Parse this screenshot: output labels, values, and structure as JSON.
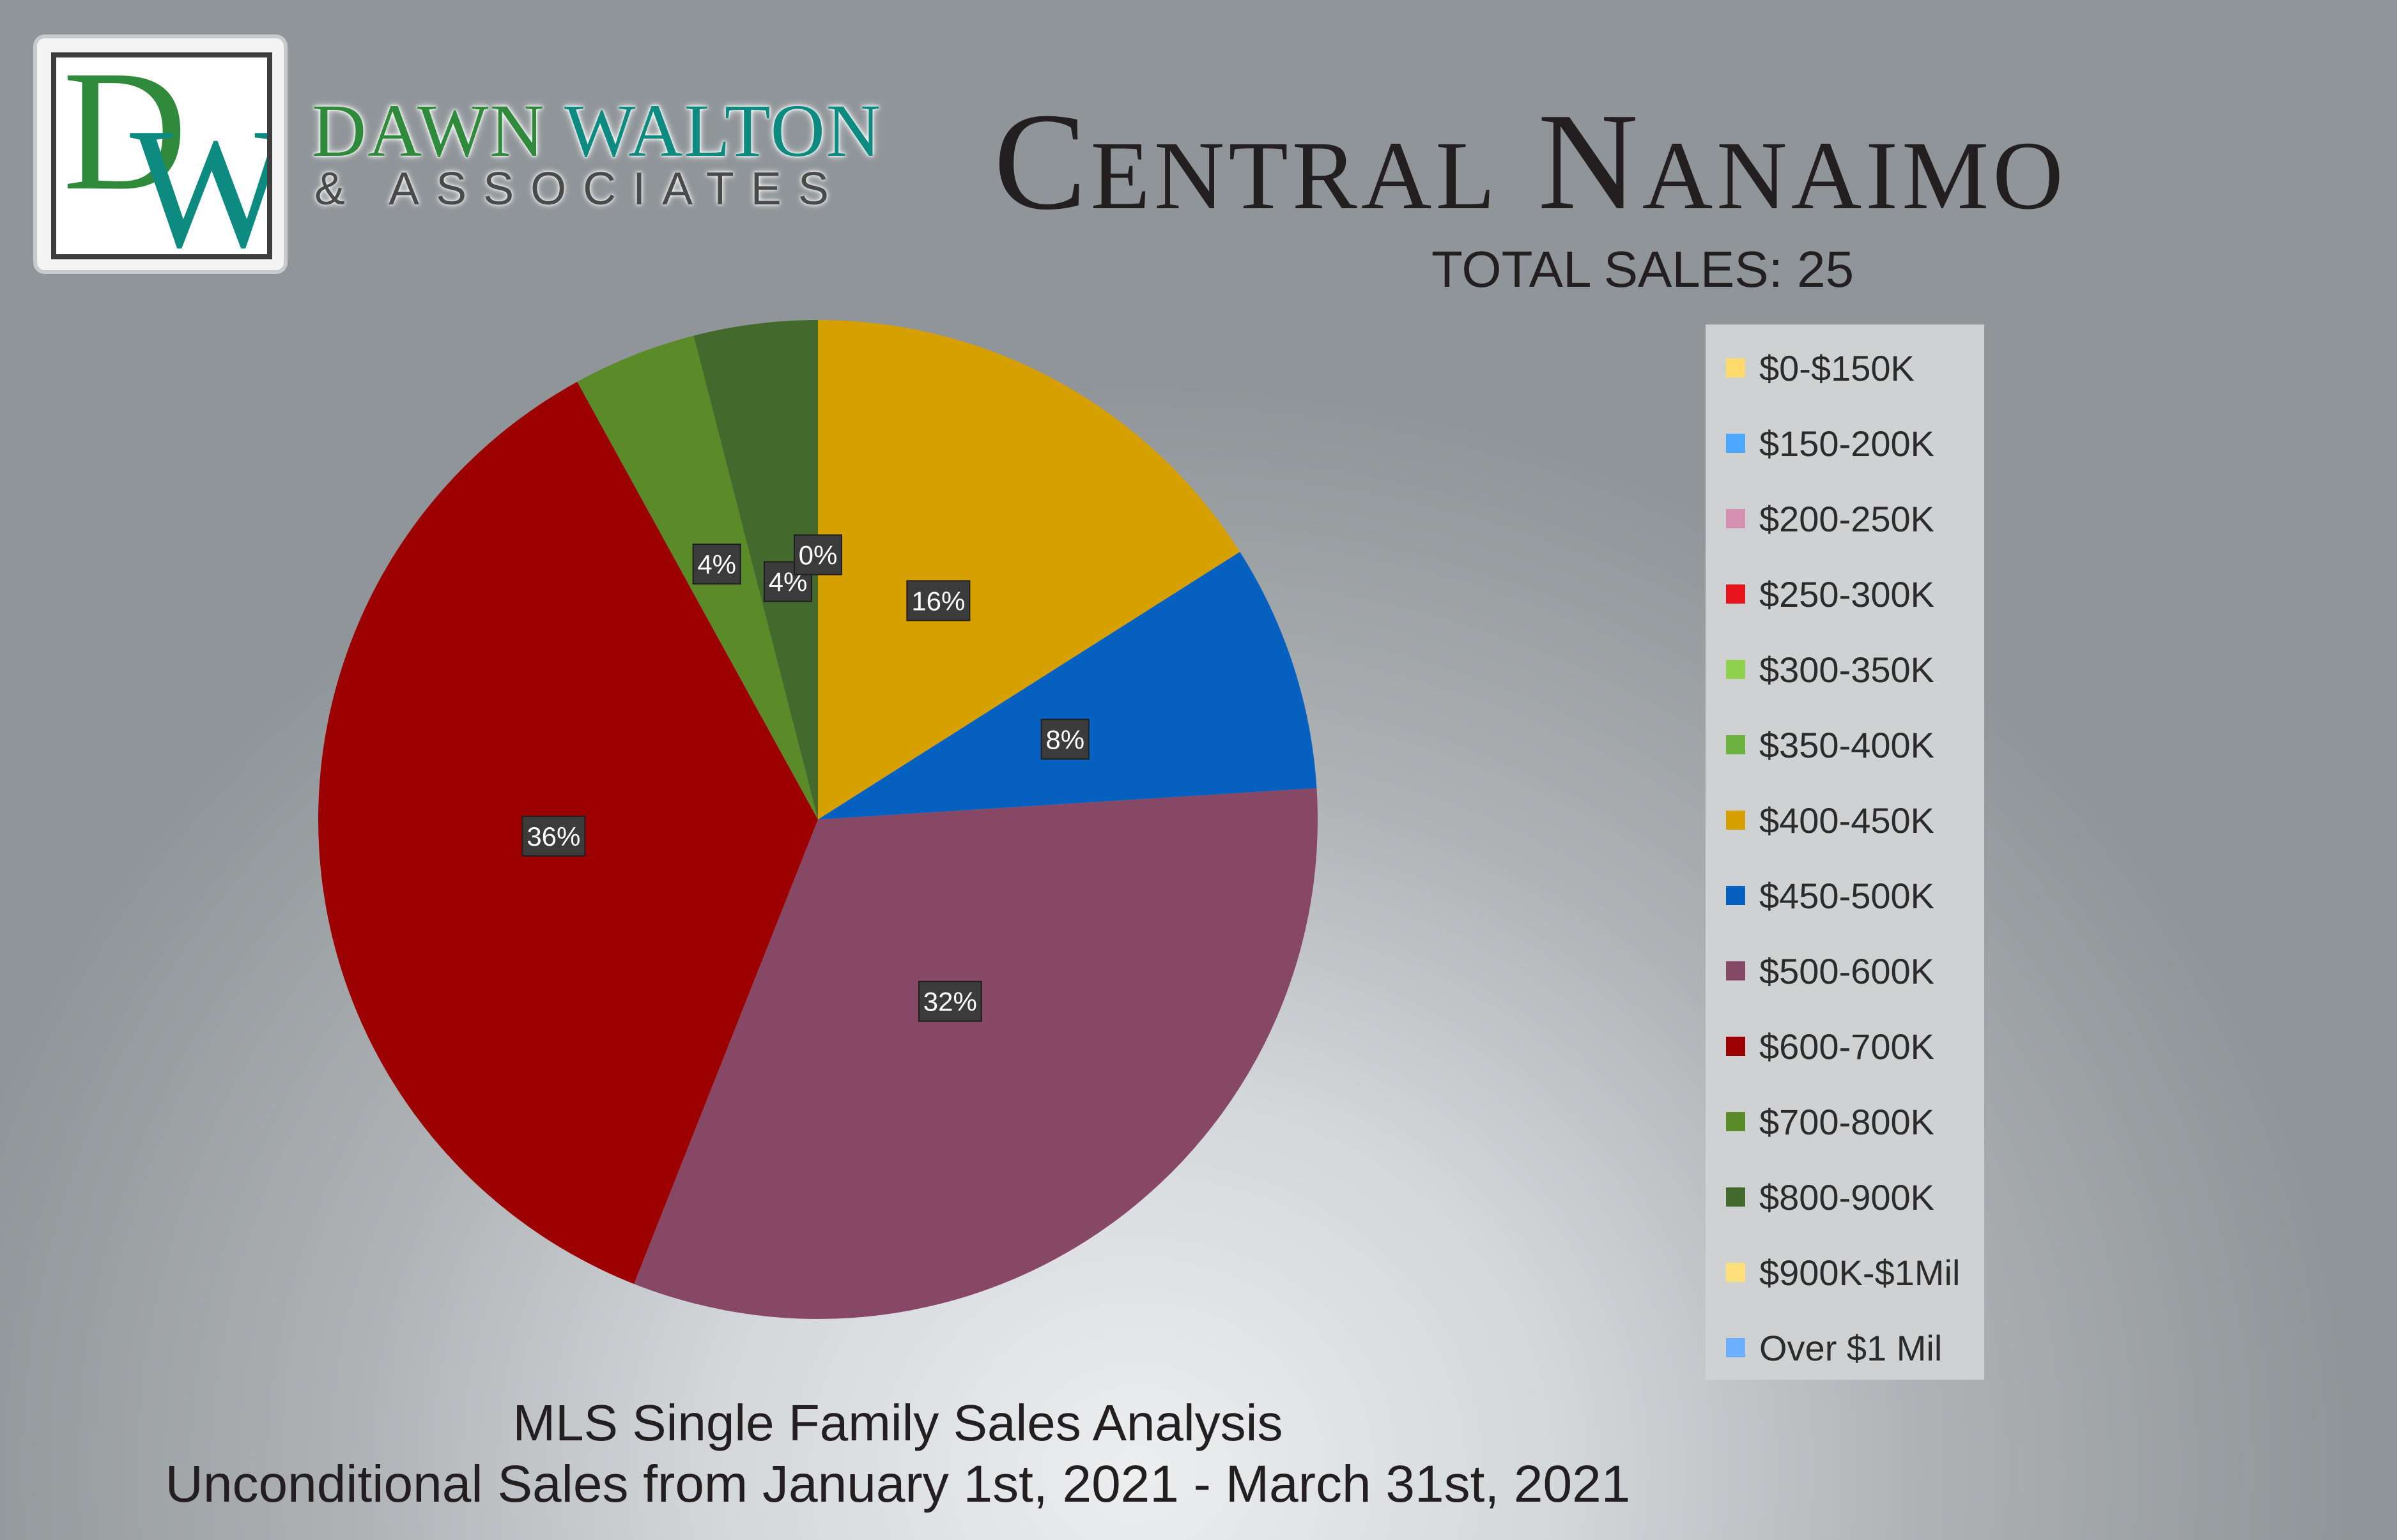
{
  "logo": {
    "monogram_d": "D",
    "monogram_w": "W",
    "name_part1": "DAWN",
    "name_part2": "WALTON",
    "subtitle": "& ASSOCIATES"
  },
  "header": {
    "title": "Central Nanaimo",
    "total_sales": "TOTAL SALES: 25"
  },
  "footer": {
    "line1": "MLS Single Family Sales Analysis",
    "line2": "Unconditional Sales from January 1st, 2021 - March 31st, 2021"
  },
  "chart_data": {
    "type": "pie",
    "title": "Central Nanaimo",
    "legend_position": "right",
    "categories": [
      "$0-$150K",
      "$150-200K",
      "$200-250K",
      "$250-300K",
      "$300-350K",
      "$350-400K",
      "$400-450K",
      "$450-500K",
      "$500-600K",
      "$600-700K",
      "$700-800K",
      "$800-900K",
      "$900K-$1Mil",
      "Over $1 Mil"
    ],
    "values": [
      0,
      0,
      0,
      0,
      0,
      0,
      16,
      8,
      32,
      36,
      4,
      4,
      0,
      0
    ],
    "data_labels": [
      "",
      "",
      "",
      "",
      "",
      "",
      "16%",
      "8%",
      "32%",
      "36%",
      "4%",
      "4%",
      "0%",
      ""
    ],
    "colors": [
      "#ffdb6e",
      "#4da6ff",
      "#d58fb0",
      "#e8141c",
      "#8fd14f",
      "#6db33f",
      "#d6a100",
      "#0560c0",
      "#874866",
      "#9c0000",
      "#5b8a28",
      "#436a2c",
      "#ffe07a",
      "#6ab0ff"
    ]
  }
}
